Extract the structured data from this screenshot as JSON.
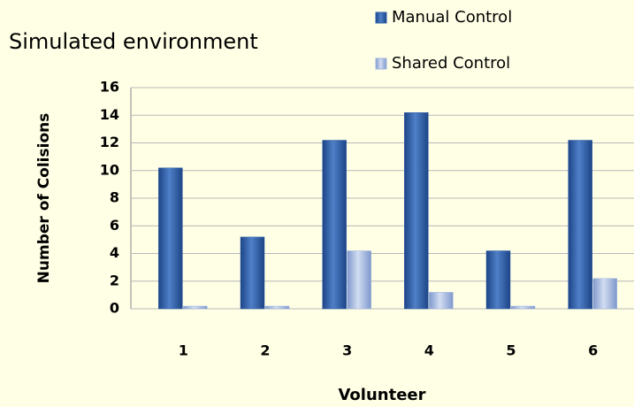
{
  "chart_data": {
    "type": "bar",
    "title": "Simulated environment",
    "xlabel": "Volunteer",
    "ylabel": "Number of Colisions",
    "categories": [
      "1",
      "2",
      "3",
      "4",
      "5",
      "6"
    ],
    "series": [
      {
        "name": "Manual Control",
        "color": "#2e5fa8",
        "values": [
          10,
          5,
          12,
          14,
          4,
          12
        ]
      },
      {
        "name": "Shared Control",
        "color": "#9fb4de",
        "values": [
          0,
          0,
          4,
          1,
          0,
          2
        ]
      }
    ],
    "ylim": [
      0,
      16
    ],
    "yticks": [
      0,
      2,
      4,
      6,
      8,
      10,
      12,
      14,
      16
    ],
    "grid": true,
    "legend": "top-right"
  }
}
